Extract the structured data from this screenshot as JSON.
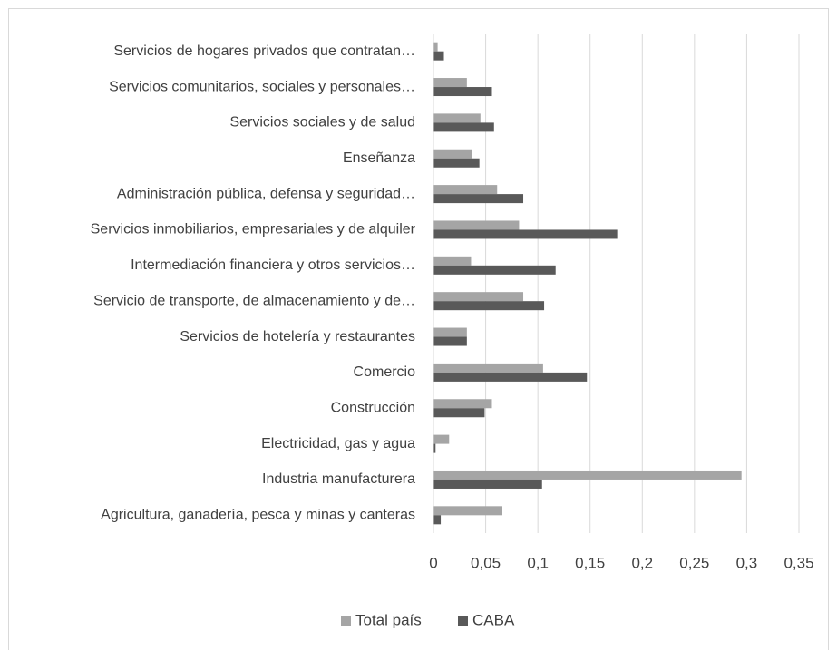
{
  "chart_data": {
    "type": "bar",
    "orientation": "horizontal",
    "categories": [
      "Servicios de hogares privados que contratan…",
      "Servicios comunitarios, sociales y personales…",
      "Servicios sociales y de salud",
      "Enseñanza",
      "Administración pública, defensa y seguridad…",
      "Servicios inmobiliarios, empresariales y de alquiler",
      "Intermediación financiera y otros servicios…",
      "Servicio de transporte, de almacenamiento y de…",
      "Servicios de hotelería y restaurantes",
      "Comercio",
      "Construcción",
      "Electricidad, gas y agua",
      "Industria manufacturera",
      "Agricultura, ganadería, pesca y minas y canteras"
    ],
    "series": [
      {
        "name": "Total país",
        "color": "#a5a5a5",
        "values": [
          0.004,
          0.032,
          0.045,
          0.037,
          0.061,
          0.082,
          0.036,
          0.086,
          0.032,
          0.105,
          0.056,
          0.015,
          0.295,
          0.066
        ]
      },
      {
        "name": "CABA",
        "color": "#595959",
        "values": [
          0.01,
          0.056,
          0.058,
          0.044,
          0.086,
          0.176,
          0.117,
          0.106,
          0.032,
          0.147,
          0.049,
          0.002,
          0.104,
          0.007
        ]
      }
    ],
    "xlim": [
      0,
      0.35
    ],
    "xticks": [
      0,
      {
        "value": 0.05,
        "label": "0,05"
      },
      {
        "value": 0.1,
        "label": "0,1"
      },
      {
        "value": 0.15,
        "label": "0,15"
      },
      {
        "value": 0.2,
        "label": "0,2"
      },
      {
        "value": 0.25,
        "label": "0,25"
      },
      {
        "value": 0.3,
        "label": "0,3"
      },
      {
        "value": 0.35,
        "label": "0,35"
      }
    ],
    "grid": true,
    "legend": "bottom"
  }
}
